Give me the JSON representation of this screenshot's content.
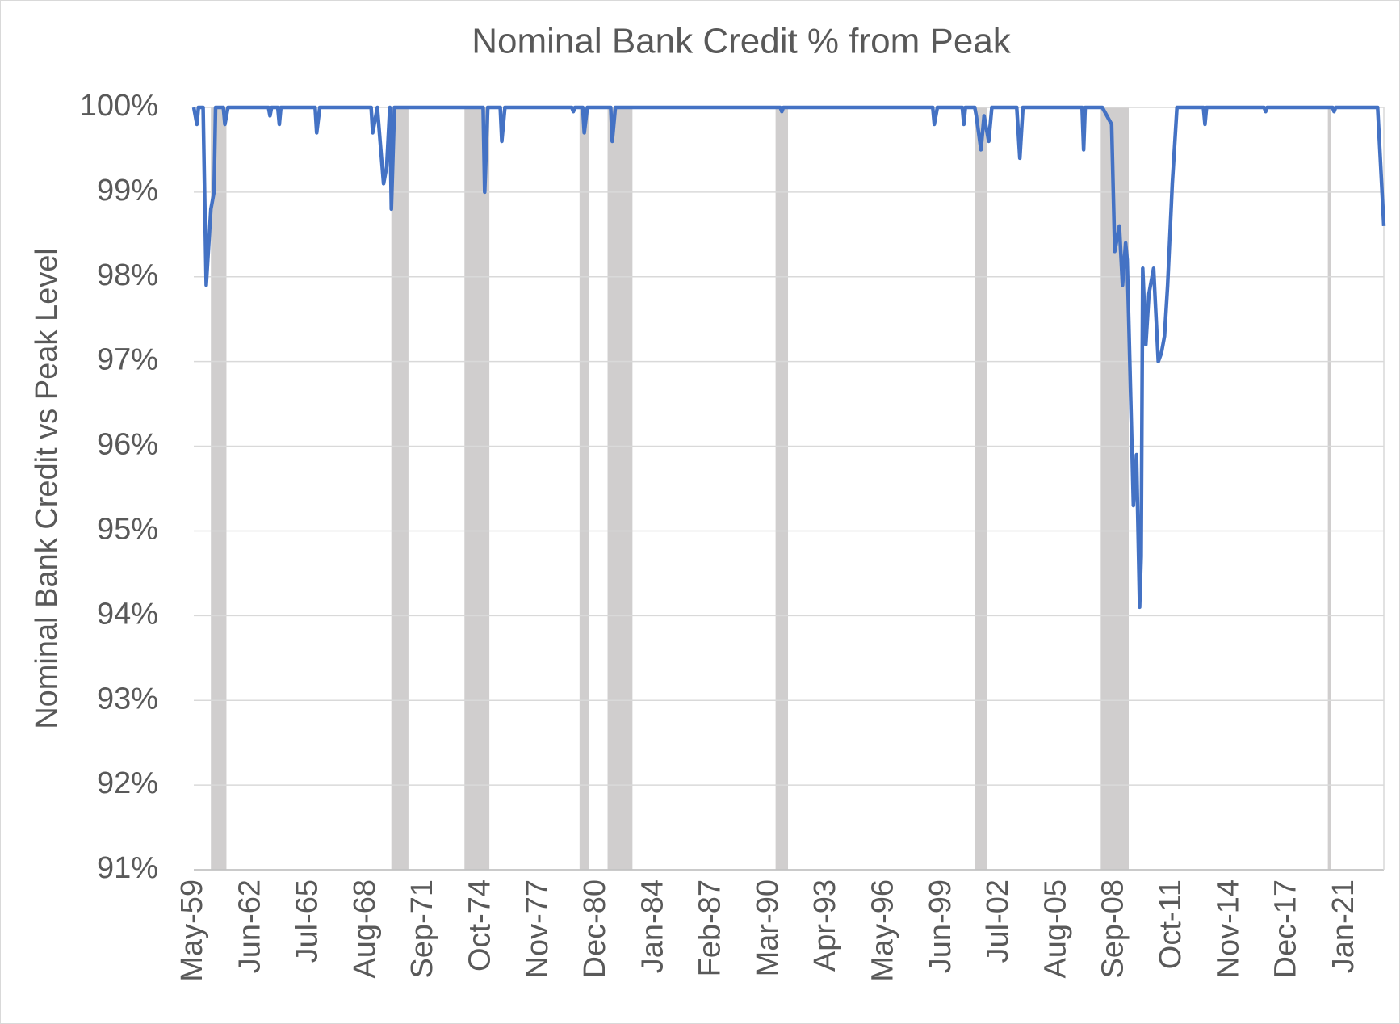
{
  "chart_data": {
    "type": "line",
    "title": "Nominal Bank Credit % from Peak",
    "y_label": "Nominal Bank Credit vs Peak Level",
    "color": "#4472c4",
    "shade_color": "#d0cece",
    "grid": true,
    "x": [
      "May-59",
      "Jul-59",
      "Aug-59",
      "Nov-59",
      "Jan-60",
      "Apr-60",
      "Jun-60",
      "Jul-60",
      "Dec-60",
      "Jan-61",
      "Mar-61",
      "May-63",
      "Jun-63",
      "Jul-63",
      "Nov-63",
      "Dec-63",
      "Jan-64",
      "Nov-65",
      "Dec-65",
      "Feb-66",
      "Nov-68",
      "Dec-68",
      "Mar-69",
      "Jul-69",
      "Sep-69",
      "Nov-69",
      "Dec-69",
      "Feb-70",
      "Nov-74",
      "Dec-74",
      "Feb-75",
      "Oct-75",
      "Nov-75",
      "Jan-76",
      "Aug-79",
      "Sep-79",
      "Oct-79",
      "Mar-80",
      "Apr-80",
      "Jun-80",
      "Sep-81",
      "Oct-81",
      "Dec-81",
      "Oct-90",
      "Nov-90",
      "Dec-90",
      "Dec-98",
      "Jan-99",
      "Mar-99",
      "Jul-00",
      "Aug-00",
      "Sep-00",
      "Mar-01",
      "Apr-01",
      "Jul-01",
      "Sep-01",
      "Dec-01",
      "Feb-02",
      "Jun-03",
      "Aug-03",
      "Oct-03",
      "Dec-06",
      "Jan-07",
      "Feb-07",
      "Jan-08",
      "Apr-08",
      "Jul-08",
      "Sep-08",
      "Dec-08",
      "Feb-09",
      "Apr-09",
      "May-09",
      "Jun-09",
      "Sep-09",
      "Nov-09",
      "Jan-10",
      "Feb-10",
      "Mar-10",
      "May-10",
      "Jul-10",
      "Oct-10",
      "Jan-11",
      "Mar-11",
      "May-11",
      "Jul-11",
      "Oct-11",
      "Jan-12",
      "Jun-13",
      "Jul-13",
      "Aug-13",
      "Sep-16",
      "Oct-16",
      "Nov-16",
      "May-20",
      "Jun-20",
      "Jul-20",
      "Oct-22",
      "Feb-23"
    ],
    "values": [
      100,
      99.8,
      100,
      100,
      97.9,
      98.8,
      99.0,
      100,
      100,
      99.8,
      100,
      100,
      99.9,
      100,
      100,
      99.8,
      100,
      100,
      99.7,
      100,
      100,
      99.7,
      100,
      99.1,
      99.3,
      100,
      98.8,
      100,
      100,
      99.0,
      100,
      100,
      99.6,
      100,
      100,
      99.95,
      100,
      100,
      99.7,
      100,
      100,
      99.6,
      100,
      100,
      99.95,
      100,
      100,
      99.8,
      100,
      100,
      99.8,
      100,
      100,
      99.9,
      99.5,
      99.9,
      99.6,
      100,
      100,
      99.4,
      100,
      100,
      99.5,
      100,
      100,
      99.9,
      99.8,
      98.3,
      98.6,
      97.9,
      98.4,
      98.2,
      97.5,
      95.3,
      95.9,
      94.1,
      94.7,
      98.1,
      97.2,
      97.8,
      98.1,
      97.0,
      97.1,
      97.3,
      97.9,
      99.1,
      100,
      100,
      99.8,
      100,
      100,
      99.95,
      100,
      100,
      99.95,
      100,
      100,
      98.6
    ],
    "shaded_periods": [
      [
        "Apr-60",
        "Feb-61"
      ],
      [
        "Dec-69",
        "Nov-70"
      ],
      [
        "Nov-73",
        "Mar-75"
      ],
      [
        "Jan-80",
        "Jul-80"
      ],
      [
        "Jul-81",
        "Nov-82"
      ],
      [
        "Jul-90",
        "Mar-91"
      ],
      [
        "Mar-01",
        "Nov-01"
      ],
      [
        "Dec-07",
        "Jun-09"
      ],
      [
        "Feb-20",
        "Apr-20"
      ]
    ],
    "xlim": [
      "May-59",
      "Feb-23"
    ],
    "xticks": [
      "May-59",
      "Jun-62",
      "Jul-65",
      "Aug-68",
      "Sep-71",
      "Oct-74",
      "Nov-77",
      "Dec-80",
      "Jan-84",
      "Feb-87",
      "Mar-90",
      "Apr-93",
      "May-96",
      "Jun-99",
      "Jul-02",
      "Aug-05",
      "Sep-08",
      "Oct-11",
      "Nov-14",
      "Dec-17",
      "Jan-21"
    ],
    "ylim": [
      91,
      100
    ],
    "yticks": [
      {
        "value": 91,
        "label": "91%"
      },
      {
        "value": 92,
        "label": "92%"
      },
      {
        "value": 93,
        "label": "93%"
      },
      {
        "value": 94,
        "label": "94%"
      },
      {
        "value": 95,
        "label": "95%"
      },
      {
        "value": 96,
        "label": "96%"
      },
      {
        "value": 97,
        "label": "97%"
      },
      {
        "value": 98,
        "label": "98%"
      },
      {
        "value": 99,
        "label": "99%"
      },
      {
        "value": 100,
        "label": "100%"
      }
    ]
  }
}
